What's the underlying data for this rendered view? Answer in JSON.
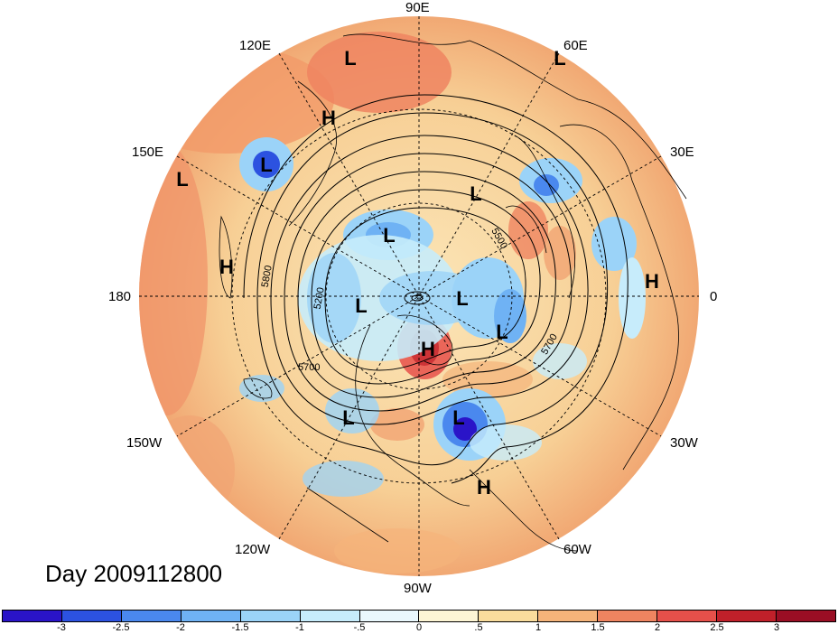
{
  "title": "Day 2009112800",
  "longitude_labels": {
    "top": "90E",
    "upper_left": "120E",
    "upper_right": "60E",
    "left_upper": "150E",
    "right_upper": "30E",
    "left": "180",
    "right": "0",
    "left_lower": "150W",
    "right_lower": "30W",
    "lower_left": "120W",
    "lower_right": "60W",
    "bottom": "90W"
  },
  "pressure_centers": [
    {
      "label": "L"
    },
    {
      "label": "L"
    },
    {
      "label": "H"
    },
    {
      "label": "L"
    },
    {
      "label": "L"
    },
    {
      "label": "L"
    },
    {
      "label": "H"
    },
    {
      "label": "L"
    },
    {
      "label": "L"
    },
    {
      "label": "L"
    },
    {
      "label": "L"
    },
    {
      "label": "H"
    },
    {
      "label": "H"
    },
    {
      "label": "L"
    },
    {
      "label": "L"
    },
    {
      "label": "H"
    }
  ],
  "contour_labels": [
    "5500",
    "5800",
    "5200",
    "5700",
    "5700"
  ],
  "colorbar": {
    "ticks": [
      "-3",
      "-2.5",
      "-2",
      "-1.5",
      "-1",
      "-.5",
      "0",
      ".5",
      "1",
      "1.5",
      "2",
      "2.5",
      "3"
    ],
    "colors": [
      "#2a14c8",
      "#2c52e0",
      "#4a88ee",
      "#6fb2f4",
      "#9bd3f8",
      "#c7ecfb",
      "#eaf8fd",
      "#fdf5d4",
      "#f9dc9c",
      "#f5b47a",
      "#ef8460",
      "#e6504a",
      "#c0202a",
      "#9a0e24"
    ]
  }
}
